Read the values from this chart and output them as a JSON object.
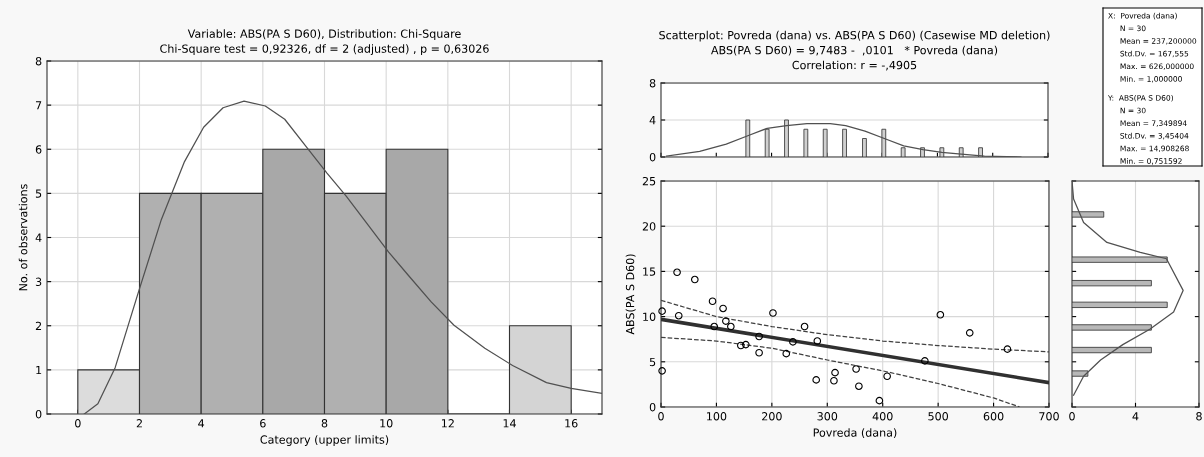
{
  "chart_data": [
    {
      "type": "histogram",
      "title": "Variable: ABS(PA S D60), Distribution: Chi-Square",
      "subtitle": "Chi-Square test = 0,92326, df = 2 (adjusted) , p = 0,63026",
      "xlabel": "Category (upper limits)",
      "ylabel": "No. of observations",
      "bins": [
        0,
        2,
        4,
        6,
        8,
        10,
        12,
        14,
        16
      ],
      "values": [
        1,
        5,
        5,
        6,
        5,
        6,
        0,
        2
      ],
      "colors": [
        "#dcdcdc",
        "#b0b0b0",
        "#b0b0b0",
        "#a8a8a8",
        "#b0b0b0",
        "#a8a8a8",
        "#dcdcdc",
        "#d4d4d4"
      ],
      "xlim": [
        -1,
        17
      ],
      "xticks": [
        0,
        2,
        4,
        6,
        8,
        10,
        12,
        14,
        16
      ],
      "ylim": [
        0,
        8
      ],
      "yticks": [
        0,
        1,
        2,
        3,
        4,
        5,
        6,
        7,
        8
      ],
      "grid": true,
      "series": [
        {
          "type": "line",
          "color": "#505050",
          "line_style": "solid",
          "x": [
            0.21,
            0.65,
            1.21,
            1.96,
            2.71,
            3.46,
            4.08,
            4.71,
            5.39,
            6.08,
            6.71,
            7.45,
            8.08,
            8.71,
            9.46,
            10.08,
            10.71,
            11.46,
            12.2,
            13.2,
            14.1,
            15.2,
            16,
            17
          ],
          "values": [
            0,
            0.23,
            1.05,
            2.75,
            4.41,
            5.72,
            6.5,
            6.94,
            7.09,
            6.98,
            6.68,
            6.02,
            5.46,
            4.93,
            4.24,
            3.67,
            3.15,
            2.54,
            2.01,
            1.49,
            1.1,
            0.71,
            0.58,
            0.47
          ]
        }
      ]
    },
    {
      "type": "bar",
      "title": "Scatterplot: Povreda (dana) vs. ABS(PA S D60) (Casewise MD deletion)",
      "subtitle": "ABS(PA S D60) = 9,7483 -  ,0101   * Povreda (dana)\nCorrelation: r = -,4905",
      "xlim": [
        0,
        700
      ],
      "xticks": [
        0,
        100,
        200,
        300,
        400,
        500,
        600,
        700
      ],
      "ylim": [
        0,
        8
      ],
      "yticks": [
        0,
        4,
        8
      ],
      "tick_labels": "y",
      "grid": "y",
      "series": [
        {
          "type": "bar",
          "color": "#d0d0d0",
          "x": [
            157,
            192,
            227,
            262,
            297,
            332,
            368,
            403,
            438,
            473,
            508,
            543,
            578
          ],
          "values": [
            4,
            3,
            4,
            3,
            3,
            3,
            2,
            3,
            1,
            1,
            1,
            1,
            1
          ]
        },
        {
          "type": "line",
          "color": "#505050",
          "line_style": "solid",
          "x": [
            10,
            70,
            118,
            157,
            192,
            227,
            264,
            306,
            334,
            369,
            404,
            439,
            474,
            508,
            543,
            585,
            651
          ],
          "values": [
            0.1,
            0.6,
            1.4,
            2.3,
            3.1,
            3.4,
            3.6,
            3.6,
            3.4,
            2.8,
            2.0,
            1.2,
            0.8,
            0.5,
            0.3,
            0.1,
            0
          ]
        }
      ]
    },
    {
      "type": "scatter",
      "xlabel": "Povreda (dana)",
      "ylabel": "ABS(PA S D60)",
      "xlim": [
        0,
        700
      ],
      "xticks": [
        0,
        100,
        200,
        300,
        400,
        500,
        600,
        700
      ],
      "ylim": [
        0,
        25
      ],
      "yticks": [
        0,
        5,
        10,
        15,
        20,
        25
      ],
      "grid": true,
      "series": [
        {
          "type": "scatter",
          "marker": "circle",
          "color": "#000000",
          "x": [
            2,
            2,
            29,
            32,
            61,
            93,
            96,
            112,
            117,
            126,
            144,
            153,
            177,
            177,
            202,
            226,
            238,
            259,
            280,
            282,
            312,
            314,
            352,
            357,
            394,
            408,
            476,
            504,
            557,
            625
          ],
          "values": [
            4.0,
            10.6,
            14.9,
            10.1,
            14.1,
            11.7,
            8.9,
            10.9,
            9.5,
            8.9,
            6.8,
            6.9,
            7.8,
            6.0,
            10.4,
            5.9,
            7.2,
            8.9,
            3.0,
            7.3,
            2.9,
            3.8,
            4.2,
            2.3,
            0.7,
            3.4,
            5.1,
            10.2,
            8.2,
            6.4
          ]
        },
        {
          "type": "line",
          "color": "#303030",
          "line_style": "solid",
          "x": [
            0,
            700
          ],
          "values": [
            9.7,
            2.7
          ]
        },
        {
          "type": "line",
          "color": "#404040",
          "line_style": "dashed",
          "x": [
            0,
            100,
            200,
            300,
            400,
            500,
            600,
            700
          ],
          "values": [
            11.8,
            10.0,
            8.9,
            8.0,
            7.3,
            6.8,
            6.4,
            6.1
          ]
        },
        {
          "type": "line",
          "color": "#404040",
          "line_style": "dashed",
          "x": [
            0,
            100,
            200,
            300,
            400,
            500,
            600,
            647
          ],
          "values": [
            7.7,
            7.3,
            6.5,
            5.2,
            4.0,
            2.6,
            1.0,
            0
          ]
        }
      ]
    },
    {
      "type": "bar",
      "orientation": "horizontal",
      "xlim": [
        0,
        8
      ],
      "xticks": [
        0,
        4,
        8
      ],
      "ylim": [
        0,
        25
      ],
      "yticks": [
        0,
        5,
        10,
        15,
        20,
        25
      ],
      "tick_labels": "x",
      "grid": "x",
      "series": [
        {
          "type": "bar",
          "color": "#b8b8b8",
          "x": [
            3.7,
            6.3,
            8.8,
            11.3,
            13.7,
            16.3,
            21.3
          ],
          "values": [
            1,
            5,
            5,
            6,
            5,
            6,
            2
          ]
        },
        {
          "type": "line",
          "color": "#505050",
          "line_style": "solid",
          "x": [
            25,
            23,
            20.4,
            18.2,
            17.1,
            16.4,
            12.9,
            10.5,
            8.6,
            6.9,
            5.2,
            3.4,
            1.3
          ],
          "values": [
            0,
            0.1,
            0.73,
            2.2,
            4.3,
            5.95,
            7.0,
            6.4,
            4.9,
            3.2,
            1.8,
            0.73,
            0.1
          ]
        }
      ]
    },
    {
      "type": "other",
      "annotations": [
        "X:  Povreda (dana)",
        "     N = 30",
        "     Mean = 237,200000",
        "     Std.Dv. = 167,555",
        "     Max. = 626,000000",
        "     Min. = 1,000000",
        "Y:  ABS(PA S D60)",
        "     N = 30",
        "     Mean = 7,349894",
        "     Std.Dv. = 3,45404",
        "     Max. = 14,908268",
        "     Min. = 0,751592"
      ]
    }
  ]
}
